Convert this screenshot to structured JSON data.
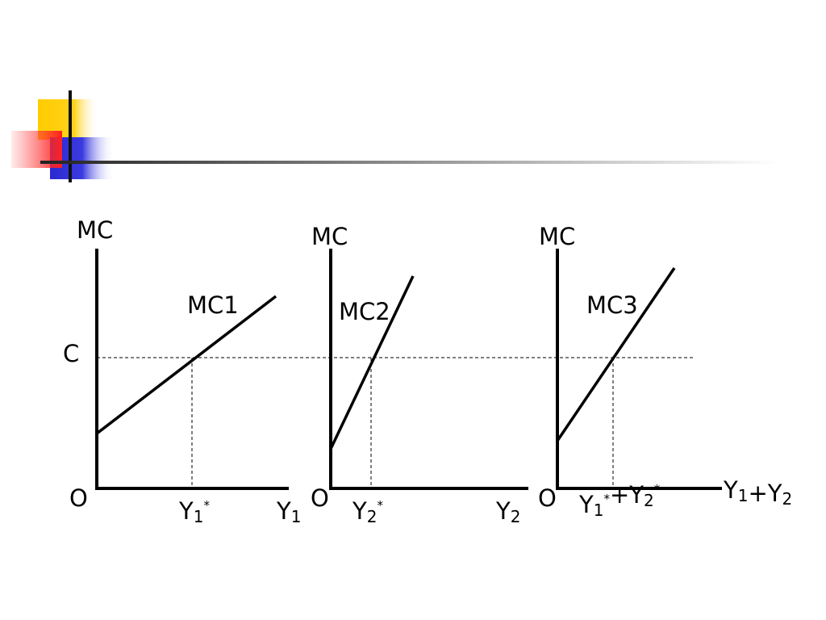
{
  "price_label": "C",
  "panels": [
    {
      "y_axis_label": "MC",
      "curve_label": "MC1",
      "origin_label": "O",
      "x_point_label": [
        {
          "base": "Y",
          "sub": "1",
          "sup": "*"
        }
      ],
      "x_axis_label": [
        {
          "base": "Y",
          "sub": "1"
        }
      ]
    },
    {
      "y_axis_label": "MC",
      "curve_label": "MC2",
      "origin_label": "O",
      "x_point_label": [
        {
          "base": "Y",
          "sub": "2",
          "sup": "*"
        }
      ],
      "x_axis_label": [
        {
          "base": "Y",
          "sub": "2"
        }
      ]
    },
    {
      "y_axis_label": "MC",
      "curve_label": "MC3",
      "origin_label": "O",
      "x_point_label": [
        {
          "base": "Y",
          "sub": "1",
          "sup": "*"
        },
        {
          "base": "+Y",
          "sub": "2",
          "sup": "*"
        }
      ],
      "x_axis_label": [
        {
          "base": "Y",
          "sub": "1"
        },
        {
          "base": "+Y",
          "sub": "2"
        }
      ]
    }
  ]
}
